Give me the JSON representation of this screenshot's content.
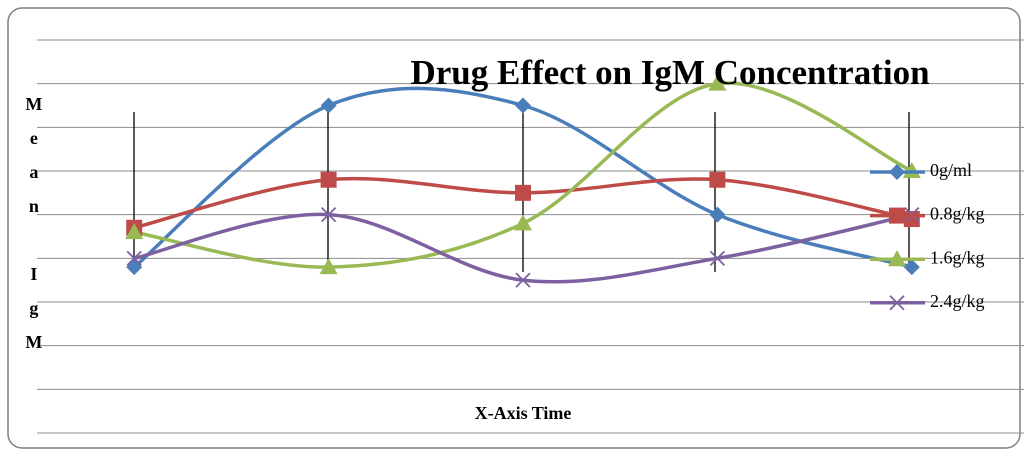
{
  "chart_data": {
    "type": "line",
    "title": "Drug Effect on IgM Concentration",
    "y_label": "Mean IgM",
    "x_label": "X-Axis Time",
    "categories": [
      null,
      null,
      null,
      null,
      null
    ],
    "series": [
      {
        "name": "0g/ml",
        "color": "#4a7ebb",
        "marker": "diamond",
        "values": [
          3.8,
          7.5,
          7.5,
          5.0,
          3.8
        ]
      },
      {
        "name": "0.8g/kg",
        "color": "#be4b48",
        "marker": "square",
        "values": [
          4.7,
          5.8,
          5.5,
          5.8,
          4.9
        ]
      },
      {
        "name": "1.6g/kg",
        "color": "#98b954",
        "marker": "triangle",
        "values": [
          4.6,
          3.8,
          4.8,
          8.0,
          6.0
        ]
      },
      {
        "name": "2.4g/kg",
        "color": "#7d60a0",
        "marker": "x",
        "values": [
          4.0,
          5.0,
          3.5,
          4.0,
          5.0
        ]
      }
    ],
    "ylim": [
      0,
      9
    ],
    "yticks": [
      0,
      1,
      2,
      3,
      4,
      5,
      6,
      7,
      8,
      9
    ],
    "grid": true,
    "smooth": true,
    "legend": "right"
  }
}
